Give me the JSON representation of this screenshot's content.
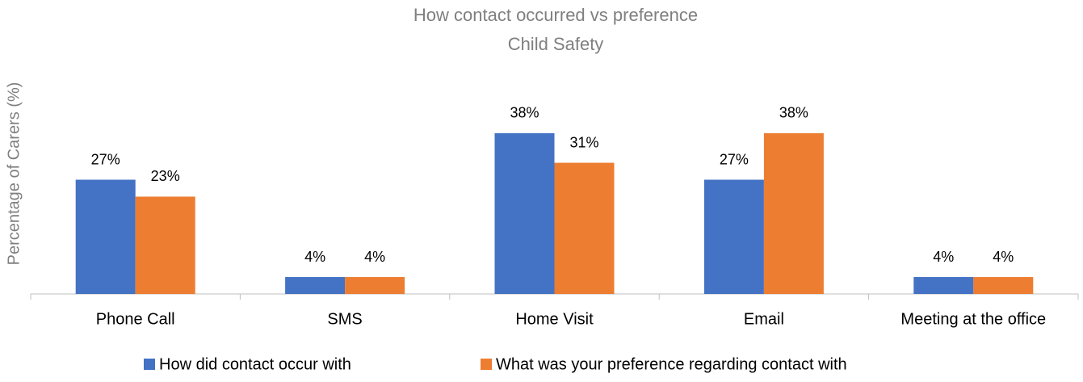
{
  "chart_data": {
    "type": "bar",
    "title": "How contact occurred vs preference",
    "subtitle": "Child Safety",
    "y_label": "Percentage of Carers (%)",
    "categories": [
      "Phone Call",
      "SMS",
      "Home Visit",
      "Email",
      "Meeting at the office"
    ],
    "series": [
      {
        "name": "How did contact occur with",
        "color": "#4472c4",
        "values": [
          27,
          4,
          38,
          27,
          4
        ],
        "value_labels": [
          "27%",
          "4%",
          "38%",
          "27%",
          "4%"
        ]
      },
      {
        "name": "What was your preference regarding contact with",
        "color": "#ed7d31",
        "values": [
          23,
          4,
          31,
          38,
          4
        ],
        "value_labels": [
          "23%",
          "4%",
          "31%",
          "38%",
          "4%"
        ]
      }
    ],
    "legend": "bottom"
  }
}
